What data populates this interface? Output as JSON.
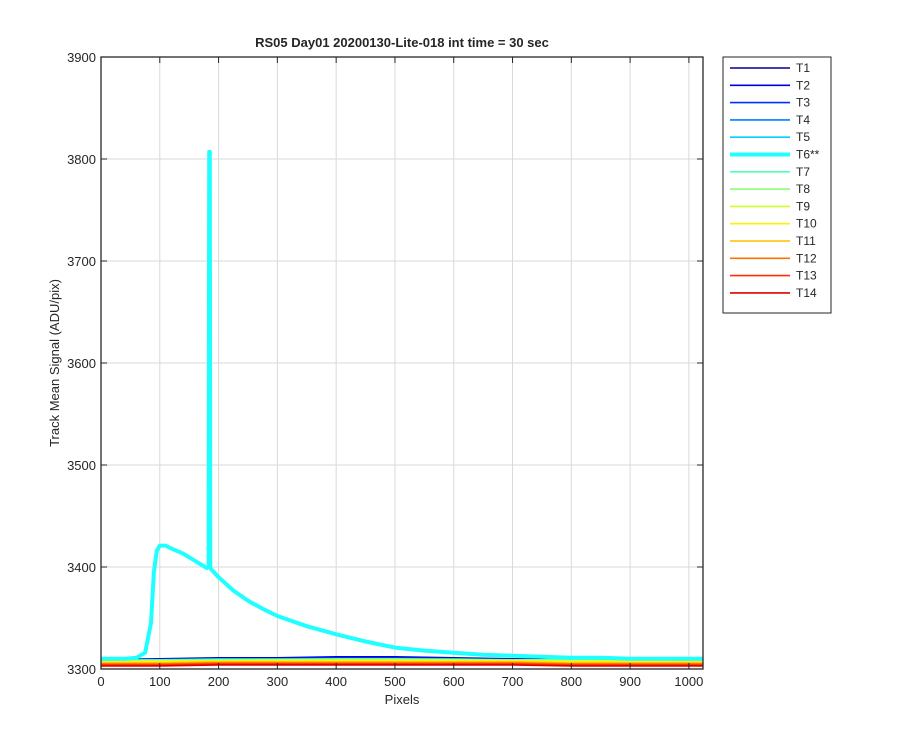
{
  "chart_data": {
    "type": "line",
    "title": "RS05 Day01 20200130-Lite-018 int time = 30 sec",
    "xlabel": "Pixels",
    "ylabel": "Track Mean Signal (ADU/pix)",
    "xlim": [
      0,
      1024
    ],
    "ylim": [
      3300,
      3900
    ],
    "xticks": [
      0,
      100,
      200,
      300,
      400,
      500,
      600,
      700,
      800,
      900,
      1000
    ],
    "yticks": [
      3300,
      3400,
      3500,
      3600,
      3700,
      3800,
      3900
    ],
    "grid": true,
    "legend_position": "outside-top-right",
    "series": [
      {
        "name": "T1",
        "color": "#00008f",
        "emphasized": false,
        "x": [
          0,
          100,
          200,
          300,
          400,
          500,
          600,
          700,
          800,
          900,
          1024
        ],
        "y": [
          3307,
          3307,
          3308,
          3308,
          3308,
          3308,
          3308,
          3308,
          3307,
          3307,
          3307
        ]
      },
      {
        "name": "T2",
        "color": "#0000df",
        "emphasized": false,
        "x": [
          0,
          100,
          200,
          300,
          400,
          500,
          600,
          700,
          800,
          900,
          1024
        ],
        "y": [
          3309,
          3310,
          3311,
          3311,
          3312,
          3312,
          3311,
          3310,
          3309,
          3309,
          3308
        ]
      },
      {
        "name": "T3",
        "color": "#0030ff",
        "emphasized": false,
        "x": [
          0,
          100,
          200,
          300,
          400,
          500,
          600,
          700,
          800,
          900,
          1024
        ],
        "y": [
          3308,
          3309,
          3310,
          3310,
          3311,
          3311,
          3310,
          3309,
          3308,
          3308,
          3307
        ]
      },
      {
        "name": "T4",
        "color": "#0080ff",
        "emphasized": false,
        "x": [
          0,
          100,
          200,
          300,
          400,
          500,
          600,
          700,
          800,
          900,
          1024
        ],
        "y": [
          3308,
          3309,
          3309,
          3310,
          3310,
          3310,
          3309,
          3309,
          3308,
          3308,
          3307
        ]
      },
      {
        "name": "T5",
        "color": "#00cfff",
        "emphasized": false,
        "x": [
          0,
          100,
          200,
          300,
          400,
          500,
          600,
          700,
          800,
          900,
          1024
        ],
        "y": [
          3309,
          3309,
          3310,
          3310,
          3310,
          3310,
          3310,
          3309,
          3309,
          3308,
          3308
        ]
      },
      {
        "name": "T6**",
        "color": "#20ffff",
        "emphasized": true,
        "x": [
          0,
          40,
          60,
          75,
          85,
          90,
          95,
          100,
          110,
          120,
          140,
          160,
          180,
          183,
          184,
          185,
          186,
          187,
          200,
          225,
          250,
          275,
          300,
          350,
          400,
          450,
          500,
          550,
          600,
          650,
          700,
          750,
          800,
          850,
          900,
          950,
          1000,
          1024
        ],
        "y": [
          3310,
          3310,
          3311,
          3316,
          3345,
          3395,
          3416,
          3421,
          3421,
          3418,
          3413,
          3406,
          3399,
          3400,
          3807,
          3807,
          3401,
          3398,
          3390,
          3377,
          3367,
          3359,
          3352,
          3342,
          3334,
          3327,
          3321,
          3318,
          3316,
          3314,
          3313,
          3312,
          3311,
          3311,
          3310,
          3310,
          3310,
          3310
        ]
      },
      {
        "name": "T7",
        "color": "#50ffaf",
        "emphasized": false,
        "x": [
          0,
          100,
          200,
          300,
          400,
          500,
          600,
          700,
          800,
          900,
          1024
        ],
        "y": [
          3308,
          3309,
          3309,
          3309,
          3310,
          3310,
          3309,
          3309,
          3309,
          3308,
          3308
        ]
      },
      {
        "name": "T8",
        "color": "#8fff70",
        "emphasized": false,
        "x": [
          0,
          100,
          200,
          300,
          400,
          500,
          600,
          700,
          800,
          900,
          1024
        ],
        "y": [
          3308,
          3308,
          3309,
          3309,
          3309,
          3309,
          3309,
          3309,
          3308,
          3308,
          3308
        ]
      },
      {
        "name": "T9",
        "color": "#cfff30",
        "emphasized": false,
        "x": [
          0,
          100,
          200,
          300,
          400,
          500,
          600,
          700,
          800,
          900,
          1024
        ],
        "y": [
          3307,
          3308,
          3308,
          3309,
          3309,
          3309,
          3309,
          3308,
          3308,
          3308,
          3307
        ]
      },
      {
        "name": "T10",
        "color": "#ffef00",
        "emphasized": false,
        "x": [
          0,
          100,
          200,
          300,
          400,
          500,
          600,
          700,
          800,
          900,
          1024
        ],
        "y": [
          3307,
          3307,
          3308,
          3308,
          3308,
          3308,
          3308,
          3308,
          3307,
          3307,
          3307
        ]
      },
      {
        "name": "T11",
        "color": "#ffbf00",
        "emphasized": false,
        "x": [
          0,
          100,
          200,
          300,
          400,
          500,
          600,
          700,
          800,
          900,
          1024
        ],
        "y": [
          3306,
          3306,
          3307,
          3307,
          3307,
          3307,
          3307,
          3307,
          3306,
          3306,
          3306
        ]
      },
      {
        "name": "T12",
        "color": "#ff7000",
        "emphasized": false,
        "x": [
          0,
          100,
          200,
          300,
          400,
          500,
          600,
          700,
          800,
          900,
          1024
        ],
        "y": [
          3305,
          3305,
          3306,
          3306,
          3306,
          3306,
          3306,
          3306,
          3305,
          3305,
          3305
        ]
      },
      {
        "name": "T13",
        "color": "#ff3000",
        "emphasized": false,
        "x": [
          0,
          100,
          200,
          300,
          400,
          500,
          600,
          700,
          800,
          900,
          1024
        ],
        "y": [
          3304,
          3304,
          3305,
          3305,
          3305,
          3305,
          3305,
          3305,
          3304,
          3304,
          3304
        ]
      },
      {
        "name": "T14",
        "color": "#df0000",
        "emphasized": false,
        "x": [
          0,
          100,
          200,
          300,
          400,
          500,
          600,
          700,
          800,
          900,
          1024
        ],
        "y": [
          3303,
          3303,
          3304,
          3304,
          3304,
          3304,
          3304,
          3304,
          3303,
          3303,
          3303
        ]
      }
    ]
  }
}
